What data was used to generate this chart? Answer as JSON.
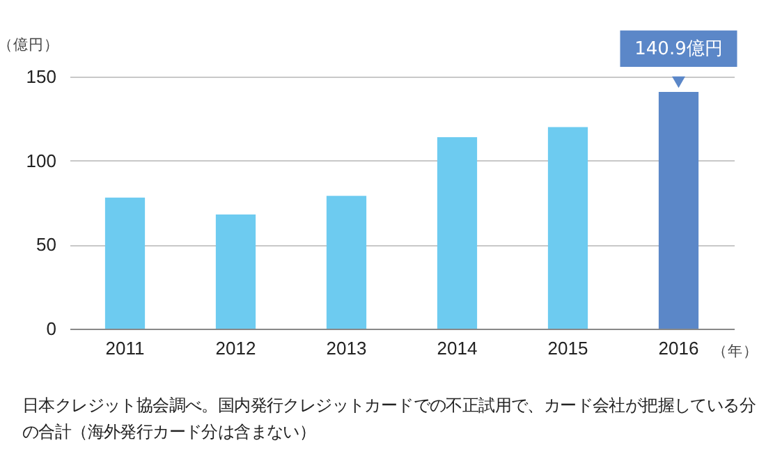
{
  "chart_data": {
    "type": "bar",
    "categories": [
      "2011",
      "2012",
      "2013",
      "2014",
      "2015",
      "2016"
    ],
    "values": [
      78,
      68,
      79,
      114,
      120,
      140.9
    ],
    "colors": [
      "#6dcbf0",
      "#6dcbf0",
      "#6dcbf0",
      "#6dcbf0",
      "#6dcbf0",
      "#5b87c8"
    ],
    "value_labels": [
      null,
      null,
      null,
      null,
      null,
      "140.9億円"
    ],
    "ylabel": "（億円）",
    "xlabel": "（年）",
    "ylim": [
      0,
      150
    ],
    "yticks": [
      0,
      50,
      100,
      150
    ],
    "grid": "y",
    "annotations": [
      "日本クレジット協会調べ。国内発行クレジットカードでの不正試用で、カード会社が把握している分の合計（海外発行カード分は含まない）"
    ]
  }
}
